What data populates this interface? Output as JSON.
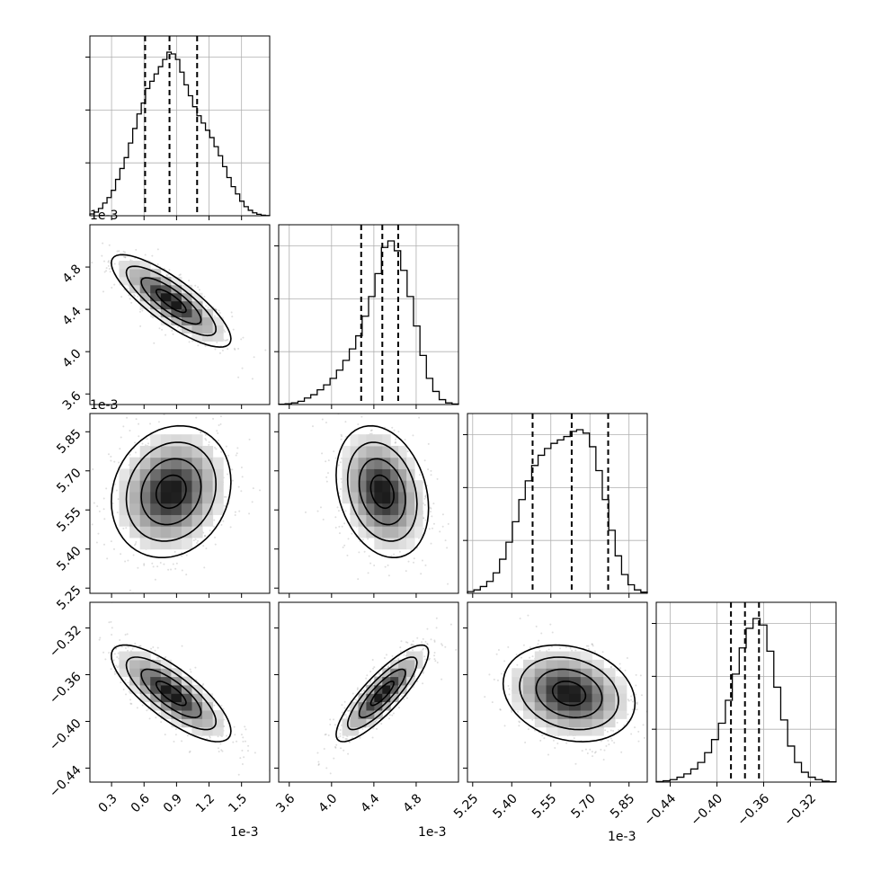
{
  "chart_data": {
    "type": "corner",
    "grid": true,
    "offset_label": "1e-3",
    "params": [
      {
        "id": "p0",
        "range": [
          0.1,
          1.76
        ],
        "scale": 0.001,
        "ticks": [
          0.3,
          0.6,
          0.9,
          1.2,
          1.5
        ],
        "tick_labels": [
          "0.3",
          "0.6",
          "0.9",
          "1.2",
          "1.5"
        ],
        "quantiles": [
          0.61,
          0.835,
          1.09
        ],
        "hist": [
          1,
          2,
          4,
          7,
          10,
          14,
          20,
          26,
          32,
          40,
          48,
          56,
          62,
          70,
          74,
          78,
          82,
          86,
          90,
          89,
          86,
          79,
          72,
          66,
          60,
          55,
          51,
          47,
          43,
          38,
          33,
          27,
          21,
          16,
          12,
          8,
          5,
          3,
          1.6,
          0.8,
          0.3,
          0.1
        ]
      },
      {
        "id": "p1",
        "range": [
          3.5,
          5.2
        ],
        "scale": 0.001,
        "ticks": [
          3.6,
          4.0,
          4.4,
          4.8
        ],
        "tick_labels": [
          "3.6",
          "4.0",
          "4.4",
          "4.8"
        ],
        "quantiles": [
          4.28,
          4.48,
          4.63
        ],
        "hist": [
          0.2,
          0.5,
          1,
          2,
          4,
          6,
          9,
          12,
          16,
          21,
          27,
          34,
          42,
          54,
          66,
          80,
          96,
          100,
          94,
          82,
          66,
          48,
          30,
          16,
          8,
          3,
          1,
          0.3
        ]
      },
      {
        "id": "p2",
        "range": [
          5.23,
          5.92
        ],
        "scale": 0.001,
        "ticks": [
          5.25,
          5.4,
          5.55,
          5.7,
          5.85
        ],
        "tick_labels": [
          "5.25",
          "5.40",
          "5.55",
          "5.70",
          "5.85"
        ],
        "quantiles": [
          5.48,
          5.63,
          5.77
        ],
        "hist": [
          1,
          2,
          4,
          7,
          12,
          20,
          30,
          42,
          55,
          66,
          75,
          81,
          85,
          88,
          90,
          92,
          95,
          96,
          94,
          86,
          72,
          55,
          37,
          22,
          11,
          5,
          2,
          0.7
        ]
      },
      {
        "id": "p3",
        "range": [
          -0.452,
          -0.298
        ],
        "scale": 1,
        "ticks": [
          -0.44,
          -0.4,
          -0.36,
          -0.32
        ],
        "tick_labels": [
          "−0.44",
          "−0.40",
          "−0.36",
          "−0.32"
        ],
        "quantiles": [
          -0.388,
          -0.376,
          -0.364
        ],
        "hist": [
          0.3,
          0.8,
          1.5,
          3,
          5,
          8,
          12,
          18,
          26,
          36,
          50,
          66,
          82,
          94,
          100,
          96,
          80,
          58,
          38,
          22,
          12,
          6,
          3,
          1.5,
          0.6,
          0.2
        ]
      }
    ],
    "means": [
      0.85,
      4.48,
      5.62,
      -0.376
    ],
    "stds": [
      0.24,
      0.19,
      0.11,
      0.018
    ],
    "correlations": {
      "1-0": -0.82,
      "2-0": 0.15,
      "2-1": -0.25,
      "3-0": -0.78,
      "3-1": 0.85,
      "3-2": -0.2
    },
    "contour_levels_sigma": [
      0.5,
      1.0,
      1.5,
      2.0
    ]
  }
}
